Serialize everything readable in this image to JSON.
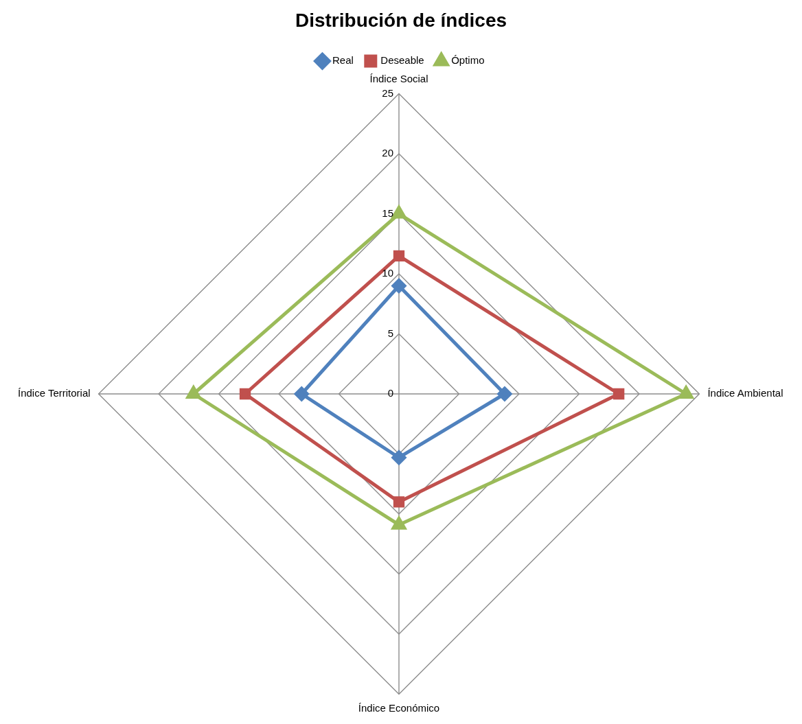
{
  "chart_data": {
    "type": "radar",
    "title": "Distribución de índices",
    "categories": [
      "Índice Social",
      "Índice Ambiental",
      "Índice Económico",
      "Índice Territorial"
    ],
    "series": [
      {
        "name": "Real",
        "color": "#4f81bd",
        "marker": "diamond",
        "values": [
          9,
          8.8,
          5.3,
          8.1
        ]
      },
      {
        "name": "Deseable",
        "color": "#c0504d",
        "marker": "square",
        "values": [
          11.5,
          18.3,
          9,
          12.8
        ]
      },
      {
        "name": "Óptimo",
        "color": "#9bbb59",
        "marker": "triangle",
        "values": [
          15,
          23.9,
          10.9,
          17.1
        ]
      }
    ],
    "ylim": [
      0,
      25
    ],
    "yticks": [
      0,
      5,
      10,
      15,
      20,
      25
    ],
    "grid": true,
    "legend": "top"
  }
}
